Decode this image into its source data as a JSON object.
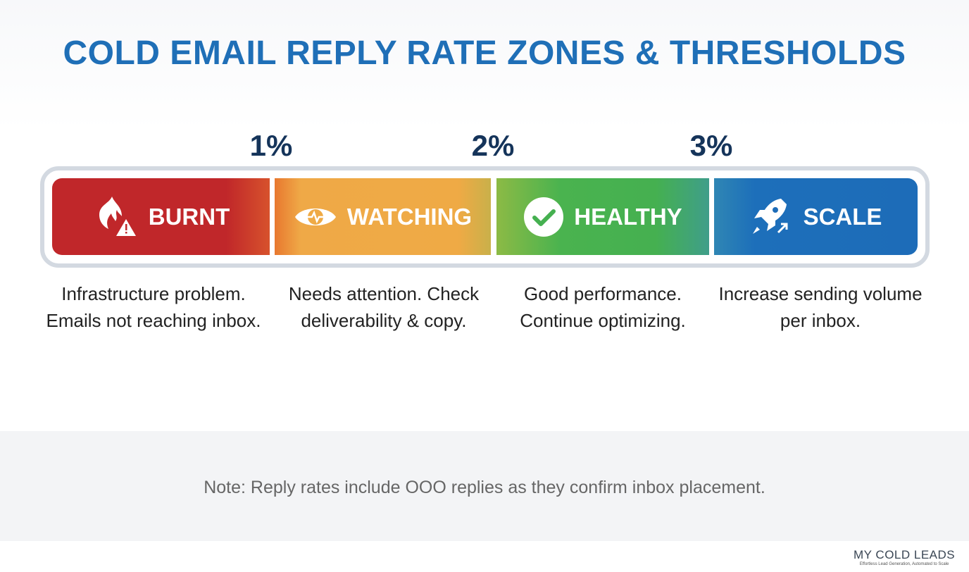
{
  "title": "COLD EMAIL REPLY RATE ZONES & THRESHOLDS",
  "thresholds": [
    "1%",
    "2%",
    "3%"
  ],
  "zones": [
    {
      "label": "BURNT",
      "icon": "flame-warning-icon",
      "color": "#c0272a",
      "description": "Infrastructure problem. Emails not reaching inbox."
    },
    {
      "label": "WATCHING",
      "icon": "eye-pulse-icon",
      "color": "#efaa45",
      "description": "Needs attention. Check deliverability & copy."
    },
    {
      "label": "HEALTHY",
      "icon": "check-circle-icon",
      "color": "#45b050",
      "description": "Good performance. Continue optimizing."
    },
    {
      "label": "SCALE",
      "icon": "rocket-icon",
      "color": "#1d6cb8",
      "description": "Increase sending volume per inbox."
    }
  ],
  "note": "Note: Reply rates include OOO replies as they confirm inbox placement.",
  "logo": {
    "name": "MY COLD LEADS",
    "tagline": "Effortless Lead Generation, Automated to Scale"
  }
}
